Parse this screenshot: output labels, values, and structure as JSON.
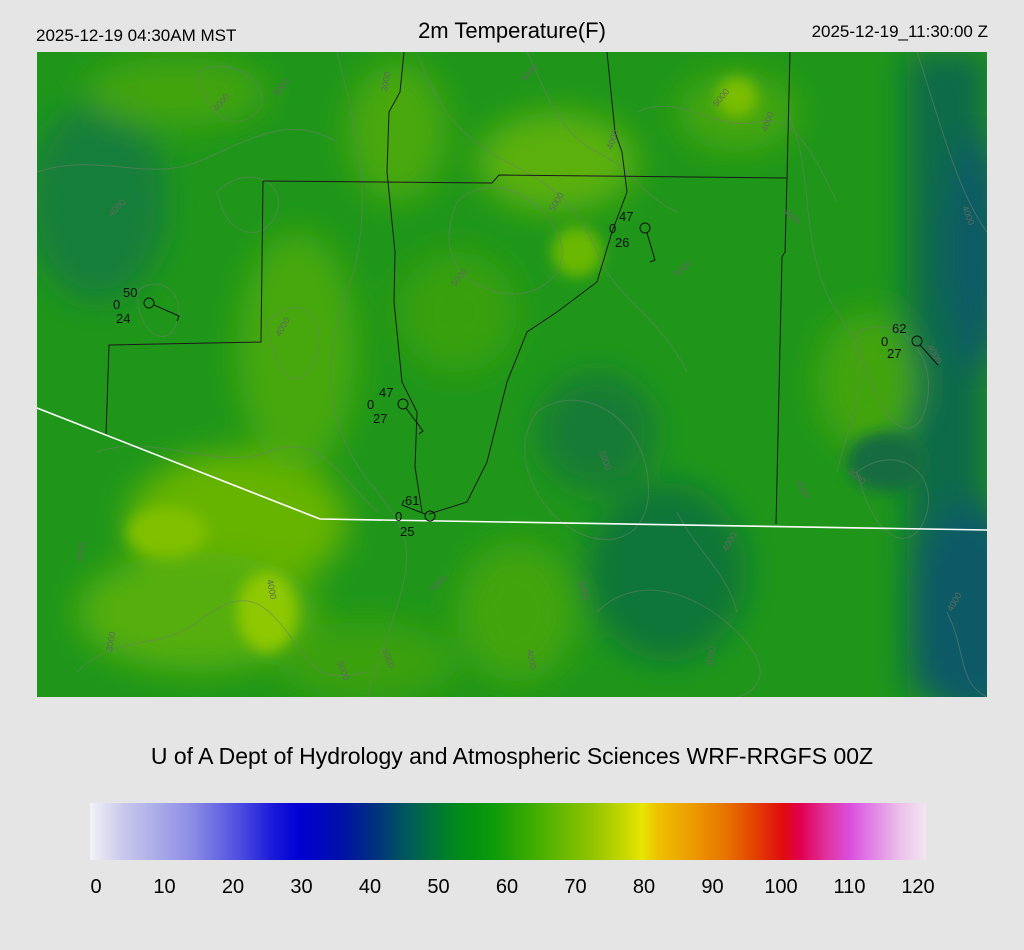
{
  "header": {
    "local_time": "2025-12-19 04:30AM MST",
    "title": "2m Temperature(F)",
    "utc_time": "2025-12-19_11:30:00 Z"
  },
  "credit": "U of A Dept of Hydrology and Atmospheric Sciences WRF-RRGFS 00Z",
  "colorbar": {
    "min": 0,
    "max": 120,
    "ticks": [
      "0",
      "10",
      "20",
      "30",
      "40",
      "50",
      "60",
      "70",
      "80",
      "90",
      "100",
      "110",
      "120"
    ]
  },
  "stations": [
    {
      "temp": "50",
      "dewpoint": "24",
      "cloud": "0"
    },
    {
      "temp": "47",
      "dewpoint": "26",
      "cloud": "0"
    },
    {
      "temp": "47",
      "dewpoint": "27",
      "cloud": "0"
    },
    {
      "temp": "61",
      "dewpoint": "25",
      "cloud": "0"
    },
    {
      "temp": "62",
      "dewpoint": "27",
      "cloud": "0"
    }
  ],
  "contour_labels": [
    "4000",
    "3000",
    "3000",
    "4000",
    "5000",
    "4000",
    "4000",
    "5000",
    "4000",
    "4000",
    "4000",
    "5000",
    "5000",
    "4000",
    "4000",
    "5000",
    "4000",
    "3000",
    "4000",
    "4000",
    "4000",
    "4000",
    "4000",
    "5000",
    "5000",
    "4000",
    "4000",
    "4000",
    "3000"
  ]
}
